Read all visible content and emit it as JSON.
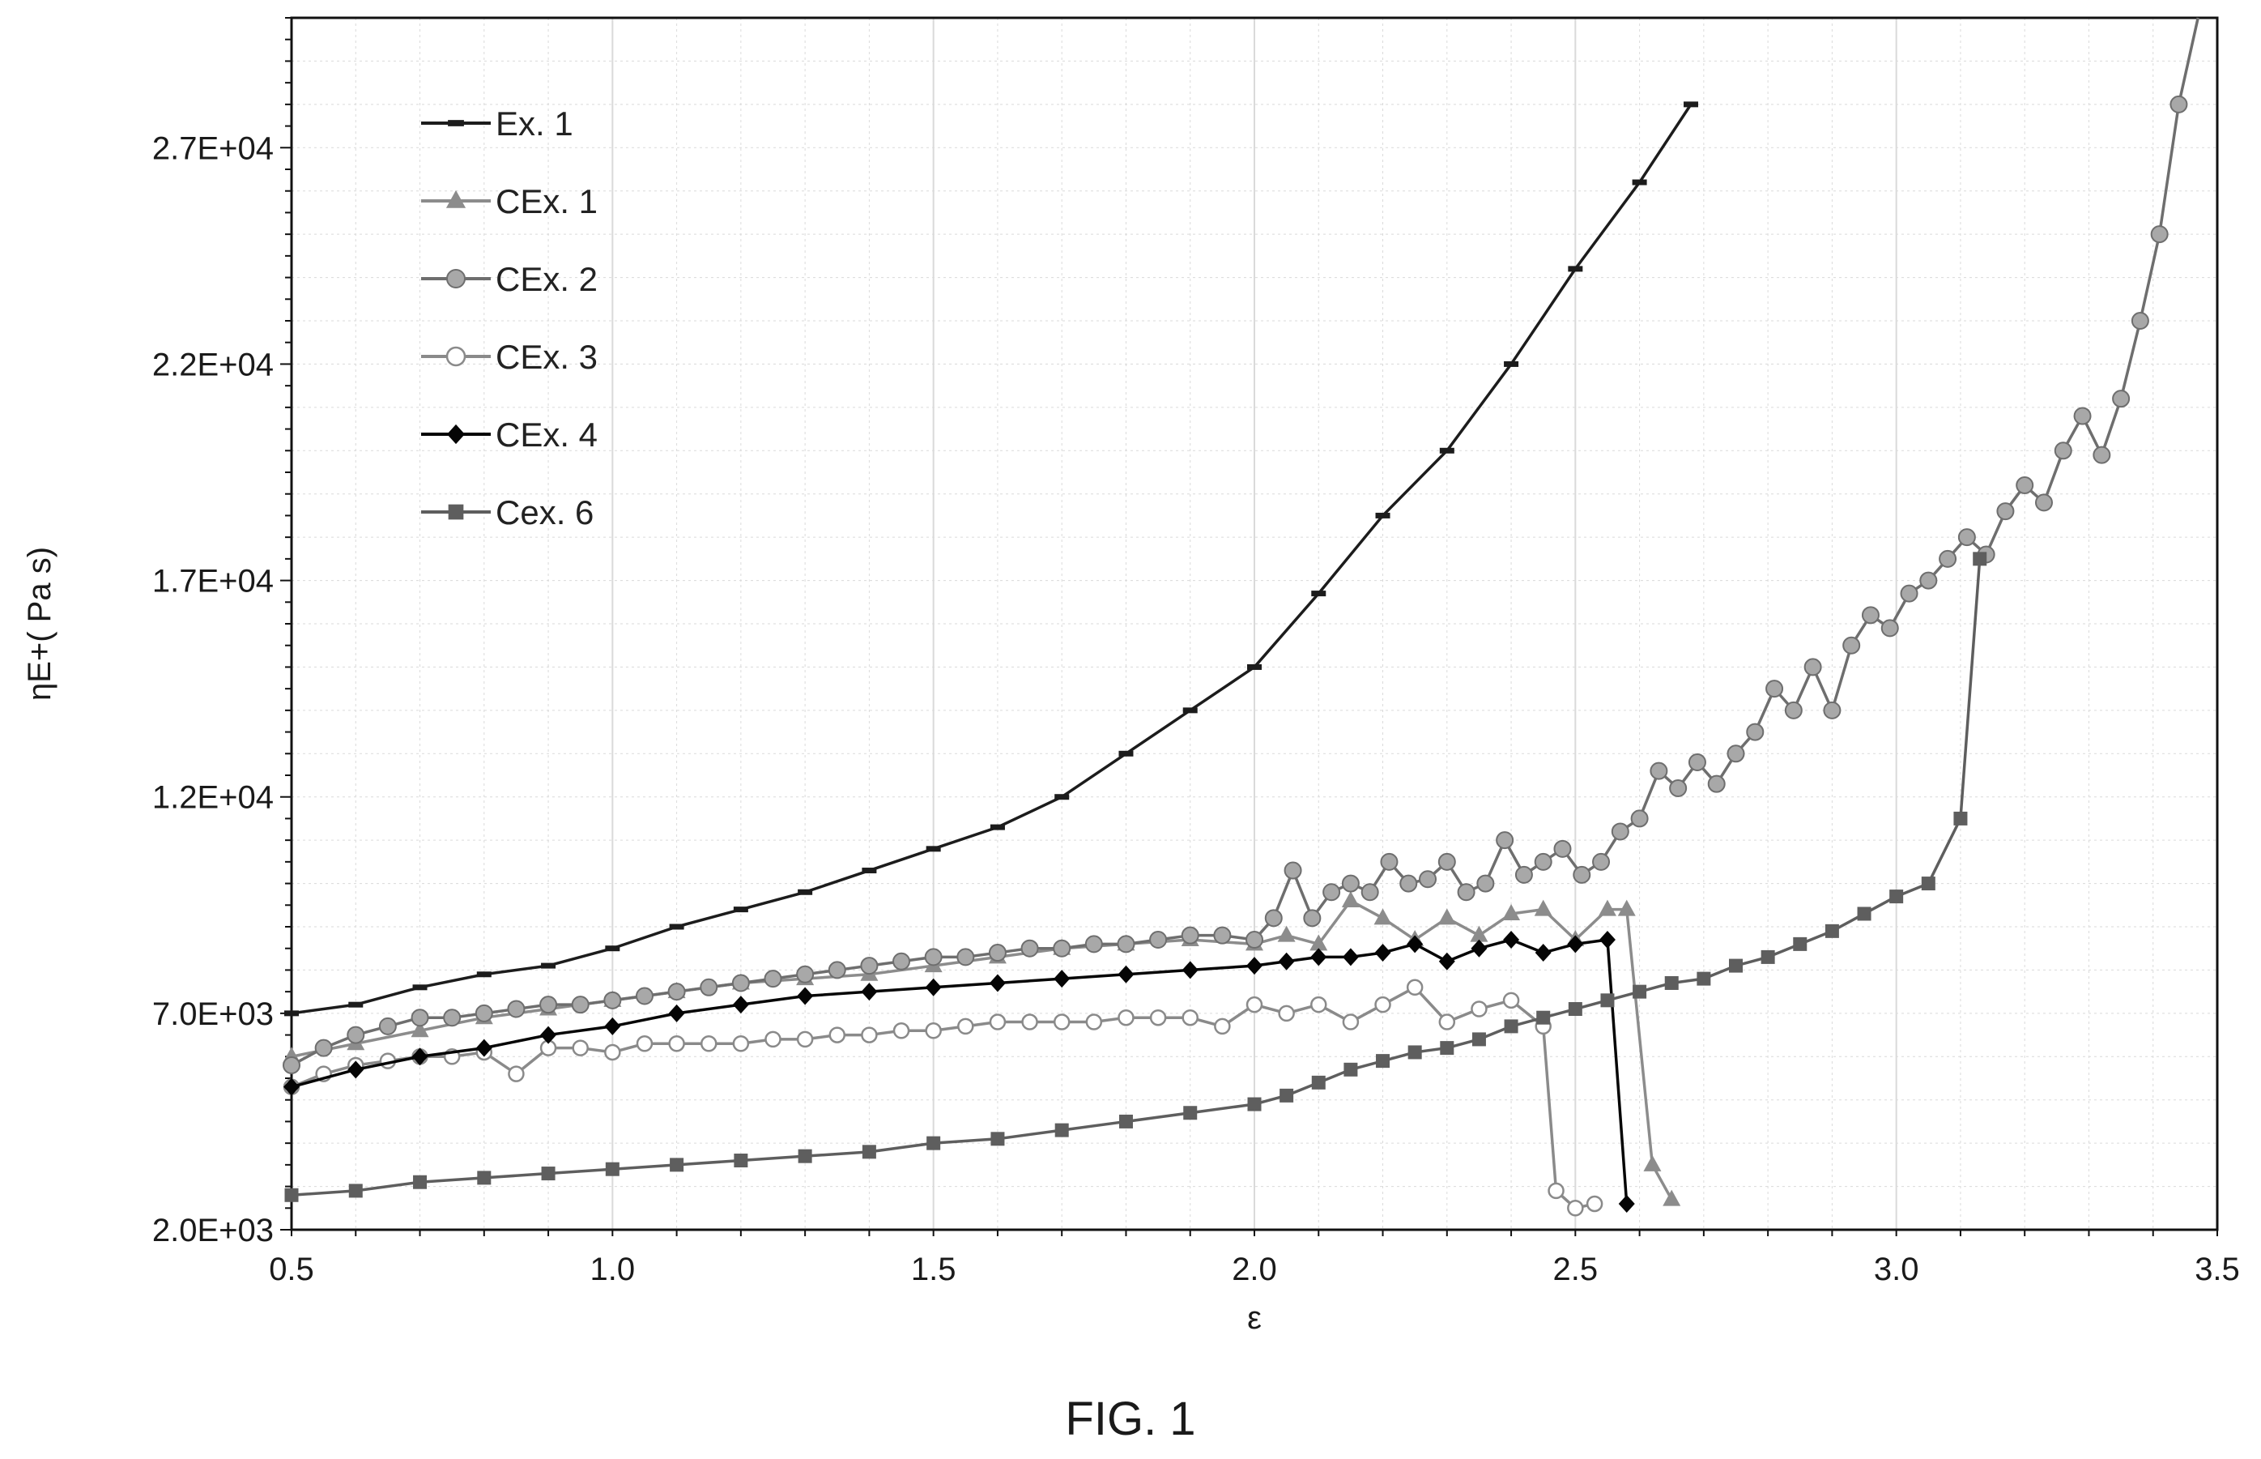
{
  "figure_label": "FIG. 1",
  "colors": {
    "Ex. 1": "#1c1c1c",
    "CEx. 1": "#8c8c8c",
    "CEx. 2": "#6e6e6e",
    "CEx. 3": "#8a8a8a",
    "CEx. 4": "#050505",
    "Cex. 6": "#5e5e5e",
    "grid": "#dadada",
    "axis": "#111111"
  },
  "chart_data": {
    "type": "line",
    "title": "",
    "xlabel": "ε",
    "ylabel": "ηE+( Pa s)",
    "xlim": [
      0.5,
      3.5
    ],
    "ylim": [
      2000,
      30000
    ],
    "x_ticks": [
      0.5,
      1.0,
      1.5,
      2.0,
      2.5,
      3.0,
      3.5
    ],
    "x_tick_labels": [
      "0.5",
      "1.0",
      "1.5",
      "2.0",
      "2.5",
      "3.0",
      "3.5"
    ],
    "y_ticks": [
      2000,
      7000,
      12000,
      17000,
      22000,
      27000
    ],
    "y_tick_labels": [
      "2.0E+03",
      "7.0E+03",
      "1.2E+04",
      "1.7E+04",
      "2.2E+04",
      "2.7E+04"
    ],
    "grid": true,
    "legend_position": "top-left",
    "series": [
      {
        "name": "Ex. 1",
        "marker": "dash",
        "x": [
          0.5,
          0.6,
          0.7,
          0.8,
          0.9,
          1.0,
          1.1,
          1.2,
          1.3,
          1.4,
          1.5,
          1.6,
          1.7,
          1.8,
          1.9,
          2.0,
          2.1,
          2.2,
          2.3,
          2.4,
          2.5,
          2.6,
          2.68
        ],
        "y": [
          7000,
          7200,
          7600,
          7900,
          8100,
          8500,
          9000,
          9400,
          9800,
          10300,
          10800,
          11300,
          12000,
          13000,
          14000,
          15000,
          16700,
          18500,
          20000,
          22000,
          24200,
          26200,
          28000
        ]
      },
      {
        "name": "CEx. 1",
        "marker": "triangle",
        "x": [
          0.5,
          0.6,
          0.7,
          0.8,
          0.9,
          1.0,
          1.1,
          1.2,
          1.3,
          1.4,
          1.5,
          1.6,
          1.7,
          1.8,
          1.9,
          2.0,
          2.05,
          2.1,
          2.15,
          2.2,
          2.25,
          2.3,
          2.35,
          2.4,
          2.45,
          2.5,
          2.55,
          2.58,
          2.62,
          2.65
        ],
        "y": [
          6000,
          6300,
          6600,
          6900,
          7100,
          7300,
          7500,
          7700,
          7800,
          7900,
          8100,
          8300,
          8500,
          8600,
          8700,
          8600,
          8800,
          8600,
          9600,
          9200,
          8700,
          9200,
          8800,
          9300,
          9400,
          8700,
          9400,
          9400,
          3500,
          2700
        ]
      },
      {
        "name": "CEx. 2",
        "marker": "circle",
        "x": [
          0.5,
          0.55,
          0.6,
          0.65,
          0.7,
          0.75,
          0.8,
          0.85,
          0.9,
          0.95,
          1.0,
          1.05,
          1.1,
          1.15,
          1.2,
          1.25,
          1.3,
          1.35,
          1.4,
          1.45,
          1.5,
          1.55,
          1.6,
          1.65,
          1.7,
          1.75,
          1.8,
          1.85,
          1.9,
          1.95,
          2.0,
          2.03,
          2.06,
          2.09,
          2.12,
          2.15,
          2.18,
          2.21,
          2.24,
          2.27,
          2.3,
          2.33,
          2.36,
          2.39,
          2.42,
          2.45,
          2.48,
          2.51,
          2.54,
          2.57,
          2.6,
          2.63,
          2.66,
          2.69,
          2.72,
          2.75,
          2.78,
          2.81,
          2.84,
          2.87,
          2.9,
          2.93,
          2.96,
          2.99,
          3.02,
          3.05,
          3.08,
          3.11,
          3.14,
          3.17,
          3.2,
          3.23,
          3.26,
          3.29,
          3.32,
          3.35,
          3.38,
          3.41,
          3.44,
          3.47
        ],
        "y": [
          5800,
          6200,
          6500,
          6700,
          6900,
          6900,
          7000,
          7100,
          7200,
          7200,
          7300,
          7400,
          7500,
          7600,
          7700,
          7800,
          7900,
          8000,
          8100,
          8200,
          8300,
          8300,
          8400,
          8500,
          8500,
          8600,
          8600,
          8700,
          8800,
          8800,
          8700,
          9200,
          10300,
          9200,
          9800,
          10000,
          9800,
          10500,
          10000,
          10100,
          10500,
          9800,
          10000,
          11000,
          10200,
          10500,
          10800,
          10200,
          10500,
          11200,
          11500,
          12600,
          12200,
          12800,
          12300,
          13000,
          13500,
          14500,
          14000,
          15000,
          14000,
          15500,
          16200,
          15900,
          16700,
          17000,
          17500,
          18000,
          17600,
          18600,
          19200,
          18800,
          20000,
          20800,
          19900,
          21200,
          23000,
          25000,
          28000,
          31000
        ]
      },
      {
        "name": "CEx. 3",
        "marker": "open-circle",
        "x": [
          0.5,
          0.55,
          0.6,
          0.65,
          0.7,
          0.75,
          0.8,
          0.85,
          0.9,
          0.95,
          1.0,
          1.05,
          1.1,
          1.15,
          1.2,
          1.25,
          1.3,
          1.35,
          1.4,
          1.45,
          1.5,
          1.55,
          1.6,
          1.65,
          1.7,
          1.75,
          1.8,
          1.85,
          1.9,
          1.95,
          2.0,
          2.05,
          2.1,
          2.15,
          2.2,
          2.25,
          2.3,
          2.35,
          2.4,
          2.45,
          2.47,
          2.5,
          2.53
        ],
        "y": [
          5300,
          5600,
          5800,
          5900,
          6000,
          6000,
          6100,
          5600,
          6200,
          6200,
          6100,
          6300,
          6300,
          6300,
          6300,
          6400,
          6400,
          6500,
          6500,
          6600,
          6600,
          6700,
          6800,
          6800,
          6800,
          6800,
          6900,
          6900,
          6900,
          6700,
          7200,
          7000,
          7200,
          6800,
          7200,
          7600,
          6800,
          7100,
          7300,
          6700,
          2900,
          2500,
          2600
        ]
      },
      {
        "name": "CEx. 4",
        "marker": "diamond",
        "x": [
          0.5,
          0.6,
          0.7,
          0.8,
          0.9,
          1.0,
          1.1,
          1.2,
          1.3,
          1.4,
          1.5,
          1.6,
          1.7,
          1.8,
          1.9,
          2.0,
          2.05,
          2.1,
          2.15,
          2.2,
          2.25,
          2.3,
          2.35,
          2.4,
          2.45,
          2.5,
          2.55,
          2.58
        ],
        "y": [
          5300,
          5700,
          6000,
          6200,
          6500,
          6700,
          7000,
          7200,
          7400,
          7500,
          7600,
          7700,
          7800,
          7900,
          8000,
          8100,
          8200,
          8300,
          8300,
          8400,
          8600,
          8200,
          8500,
          8700,
          8400,
          8600,
          8700,
          2600
        ]
      },
      {
        "name": "Cex. 6",
        "marker": "square",
        "x": [
          0.5,
          0.6,
          0.7,
          0.8,
          0.9,
          1.0,
          1.1,
          1.2,
          1.3,
          1.4,
          1.5,
          1.6,
          1.7,
          1.8,
          1.9,
          2.0,
          2.05,
          2.1,
          2.15,
          2.2,
          2.25,
          2.3,
          2.35,
          2.4,
          2.45,
          2.5,
          2.55,
          2.6,
          2.65,
          2.7,
          2.75,
          2.8,
          2.85,
          2.9,
          2.95,
          3.0,
          3.05,
          3.1,
          3.13
        ],
        "y": [
          2800,
          2900,
          3100,
          3200,
          3300,
          3400,
          3500,
          3600,
          3700,
          3800,
          4000,
          4100,
          4300,
          4500,
          4700,
          4900,
          5100,
          5400,
          5700,
          5900,
          6100,
          6200,
          6400,
          6700,
          6900,
          7100,
          7300,
          7500,
          7700,
          7800,
          8100,
          8300,
          8600,
          8900,
          9300,
          9700,
          10000,
          11500,
          17500
        ]
      }
    ]
  }
}
